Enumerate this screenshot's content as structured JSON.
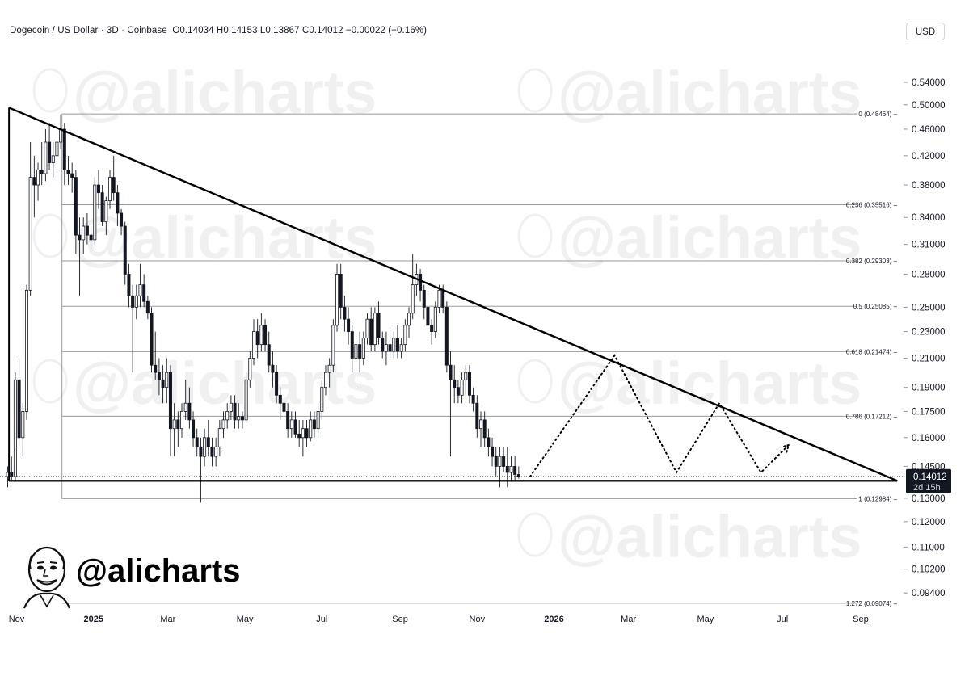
{
  "header": {
    "symbol": "Dogecoin / US Dollar · 3D · Coinbase",
    "ohlc": "O0.14034  H0.14153  L0.13867  C0.14012  −0.00022 (−0.16%)"
  },
  "currency_button": "USD",
  "watermark_text": "@alicharts",
  "brand_text": "@alicharts",
  "last_price": {
    "price": "0.14012",
    "countdown": "2d 15h"
  },
  "colors": {
    "up": "#ffffff",
    "down": "#131722",
    "wick": "#131722",
    "fib": "#9a9a9a",
    "trendline": "#000000"
  },
  "chart_data": {
    "type": "candlestick",
    "symbol": "DOGE/USD",
    "timeframe": "3D",
    "y_scale": "log",
    "ylim": [
      0.088,
      0.62
    ],
    "x_range": [
      "2024-10-24",
      "2026-10-05"
    ],
    "y_ticks": [
      "0.54000",
      "0.50000",
      "0.46000",
      "0.42000",
      "0.38000",
      "0.34000",
      "0.31000",
      "0.28000",
      "0.25000",
      "0.23000",
      "0.21000",
      "0.19000",
      "0.17500",
      "0.16000",
      "0.14500",
      "0.13000",
      "0.12000",
      "0.11000",
      "0.10200",
      "0.09400"
    ],
    "x_ticks": [
      {
        "label": "Nov",
        "date": "2024-11-01",
        "bold": false
      },
      {
        "label": "2025",
        "date": "2025-01-01",
        "bold": true
      },
      {
        "label": "Mar",
        "date": "2025-03-01",
        "bold": false
      },
      {
        "label": "May",
        "date": "2025-05-01",
        "bold": false
      },
      {
        "label": "Jul",
        "date": "2025-07-01",
        "bold": false
      },
      {
        "label": "Sep",
        "date": "2025-09-01",
        "bold": false
      },
      {
        "label": "Nov",
        "date": "2025-11-01",
        "bold": false
      },
      {
        "label": "2026",
        "date": "2026-01-01",
        "bold": true
      },
      {
        "label": "Mar",
        "date": "2026-03-01",
        "bold": false
      },
      {
        "label": "May",
        "date": "2026-05-01",
        "bold": false
      },
      {
        "label": "Jul",
        "date": "2026-07-01",
        "bold": false
      },
      {
        "label": "Sep",
        "date": "2026-09-01",
        "bold": false
      }
    ],
    "fib_levels": [
      {
        "label": "0 (0.48464)",
        "value": 0.48464
      },
      {
        "label": "0.236 (0.35516)",
        "value": 0.35516
      },
      {
        "label": "0.382 (0.29303)",
        "value": 0.29303
      },
      {
        "label": "0.5 (0.25085)",
        "value": 0.25085
      },
      {
        "label": "0.618 (0.21474)",
        "value": 0.21474
      },
      {
        "label": "0.786 (0.17212)",
        "value": 0.17212
      },
      {
        "label": "1 (0.12984)",
        "value": 0.12984
      },
      {
        "label": "1.272 (0.09074)",
        "value": 0.09074
      }
    ],
    "fib_start_date": "2024-12-07",
    "trendlines": [
      {
        "name": "resistance",
        "points": [
          [
            "2024-10-26",
            0.495
          ],
          [
            "2026-09-30",
            0.138
          ]
        ]
      },
      {
        "name": "support",
        "points": [
          [
            "2024-10-26",
            0.138
          ],
          [
            "2026-09-30",
            0.138
          ]
        ]
      }
    ],
    "projection": [
      [
        "2025-12-13",
        0.14
      ],
      [
        "2026-02-18",
        0.212
      ],
      [
        "2026-04-08",
        0.142
      ],
      [
        "2026-05-12",
        0.18
      ],
      [
        "2026-06-14",
        0.142
      ],
      [
        "2026-07-06",
        0.156
      ]
    ],
    "candles": [
      [
        "2024-10-25",
        0.14,
        0.145,
        0.135,
        0.142
      ],
      [
        "2024-10-28",
        0.142,
        0.15,
        0.138,
        0.14
      ],
      [
        "2024-10-31",
        0.14,
        0.2,
        0.138,
        0.195
      ],
      [
        "2024-11-03",
        0.195,
        0.21,
        0.155,
        0.16
      ],
      [
        "2024-11-06",
        0.16,
        0.18,
        0.15,
        0.175
      ],
      [
        "2024-11-09",
        0.175,
        0.27,
        0.17,
        0.265
      ],
      [
        "2024-11-12",
        0.265,
        0.44,
        0.26,
        0.39
      ],
      [
        "2024-11-15",
        0.39,
        0.42,
        0.34,
        0.38
      ],
      [
        "2024-11-18",
        0.38,
        0.41,
        0.36,
        0.4
      ],
      [
        "2024-11-21",
        0.4,
        0.44,
        0.38,
        0.395
      ],
      [
        "2024-11-24",
        0.395,
        0.46,
        0.385,
        0.44
      ],
      [
        "2024-11-27",
        0.44,
        0.47,
        0.4,
        0.41
      ],
      [
        "2024-11-30",
        0.41,
        0.44,
        0.39,
        0.42
      ],
      [
        "2024-12-03",
        0.42,
        0.46,
        0.4,
        0.44
      ],
      [
        "2024-12-06",
        0.44,
        0.484,
        0.43,
        0.46
      ],
      [
        "2024-12-09",
        0.46,
        0.47,
        0.38,
        0.4
      ],
      [
        "2024-12-12",
        0.4,
        0.42,
        0.38,
        0.395
      ],
      [
        "2024-12-15",
        0.395,
        0.41,
        0.37,
        0.39
      ],
      [
        "2024-12-18",
        0.39,
        0.4,
        0.3,
        0.32
      ],
      [
        "2024-12-21",
        0.32,
        0.34,
        0.26,
        0.315
      ],
      [
        "2024-12-24",
        0.315,
        0.34,
        0.3,
        0.33
      ],
      [
        "2024-12-27",
        0.33,
        0.345,
        0.31,
        0.32
      ],
      [
        "2024-12-30",
        0.32,
        0.33,
        0.305,
        0.315
      ],
      [
        "2025-01-02",
        0.315,
        0.39,
        0.31,
        0.38
      ],
      [
        "2025-01-05",
        0.38,
        0.4,
        0.35,
        0.37
      ],
      [
        "2025-01-08",
        0.37,
        0.38,
        0.33,
        0.335
      ],
      [
        "2025-01-11",
        0.335,
        0.365,
        0.32,
        0.36
      ],
      [
        "2025-01-14",
        0.36,
        0.4,
        0.35,
        0.39
      ],
      [
        "2025-01-17",
        0.39,
        0.42,
        0.36,
        0.37
      ],
      [
        "2025-01-20",
        0.37,
        0.38,
        0.33,
        0.345
      ],
      [
        "2025-01-23",
        0.345,
        0.35,
        0.32,
        0.33
      ],
      [
        "2025-01-26",
        0.33,
        0.335,
        0.27,
        0.28
      ],
      [
        "2025-01-29",
        0.28,
        0.29,
        0.25,
        0.26
      ],
      [
        "2025-02-01",
        0.26,
        0.27,
        0.2,
        0.25
      ],
      [
        "2025-02-04",
        0.25,
        0.27,
        0.24,
        0.26
      ],
      [
        "2025-02-07",
        0.26,
        0.29,
        0.25,
        0.27
      ],
      [
        "2025-02-10",
        0.27,
        0.28,
        0.25,
        0.255
      ],
      [
        "2025-02-13",
        0.255,
        0.26,
        0.24,
        0.245
      ],
      [
        "2025-02-16",
        0.245,
        0.25,
        0.2,
        0.205
      ],
      [
        "2025-02-19",
        0.205,
        0.23,
        0.195,
        0.2
      ],
      [
        "2025-02-22",
        0.2,
        0.21,
        0.185,
        0.195
      ],
      [
        "2025-02-25",
        0.195,
        0.205,
        0.18,
        0.19
      ],
      [
        "2025-02-28",
        0.19,
        0.21,
        0.18,
        0.2
      ],
      [
        "2025-03-03",
        0.2,
        0.205,
        0.15,
        0.165
      ],
      [
        "2025-03-06",
        0.165,
        0.18,
        0.15,
        0.17
      ],
      [
        "2025-03-09",
        0.17,
        0.175,
        0.155,
        0.165
      ],
      [
        "2025-03-12",
        0.165,
        0.18,
        0.16,
        0.175
      ],
      [
        "2025-03-15",
        0.175,
        0.195,
        0.17,
        0.18
      ],
      [
        "2025-03-18",
        0.18,
        0.19,
        0.165,
        0.17
      ],
      [
        "2025-03-21",
        0.17,
        0.175,
        0.155,
        0.16
      ],
      [
        "2025-03-24",
        0.16,
        0.165,
        0.15,
        0.155
      ],
      [
        "2025-03-27",
        0.155,
        0.16,
        0.128,
        0.15
      ],
      [
        "2025-03-30",
        0.15,
        0.165,
        0.145,
        0.16
      ],
      [
        "2025-04-02",
        0.16,
        0.17,
        0.15,
        0.155
      ],
      [
        "2025-04-05",
        0.155,
        0.16,
        0.145,
        0.15
      ],
      [
        "2025-04-08",
        0.15,
        0.16,
        0.145,
        0.155
      ],
      [
        "2025-04-11",
        0.155,
        0.17,
        0.15,
        0.165
      ],
      [
        "2025-04-14",
        0.165,
        0.175,
        0.16,
        0.17
      ],
      [
        "2025-04-17",
        0.17,
        0.18,
        0.165,
        0.175
      ],
      [
        "2025-04-20",
        0.175,
        0.185,
        0.17,
        0.18
      ],
      [
        "2025-04-23",
        0.18,
        0.185,
        0.165,
        0.17
      ],
      [
        "2025-04-26",
        0.17,
        0.18,
        0.165,
        0.172
      ],
      [
        "2025-04-29",
        0.172,
        0.175,
        0.165,
        0.17
      ],
      [
        "2025-05-02",
        0.17,
        0.2,
        0.168,
        0.195
      ],
      [
        "2025-05-05",
        0.195,
        0.215,
        0.19,
        0.21
      ],
      [
        "2025-05-08",
        0.21,
        0.24,
        0.205,
        0.23
      ],
      [
        "2025-05-11",
        0.23,
        0.24,
        0.21,
        0.22
      ],
      [
        "2025-05-14",
        0.22,
        0.245,
        0.215,
        0.235
      ],
      [
        "2025-05-17",
        0.235,
        0.24,
        0.215,
        0.22
      ],
      [
        "2025-05-20",
        0.22,
        0.23,
        0.2,
        0.205
      ],
      [
        "2025-05-23",
        0.205,
        0.215,
        0.19,
        0.2
      ],
      [
        "2025-05-26",
        0.2,
        0.205,
        0.18,
        0.185
      ],
      [
        "2025-05-29",
        0.185,
        0.19,
        0.17,
        0.18
      ],
      [
        "2025-06-01",
        0.18,
        0.185,
        0.17,
        0.175
      ],
      [
        "2025-06-04",
        0.175,
        0.18,
        0.16,
        0.165
      ],
      [
        "2025-06-07",
        0.165,
        0.175,
        0.16,
        0.17
      ],
      [
        "2025-06-10",
        0.17,
        0.175,
        0.16,
        0.162
      ],
      [
        "2025-06-13",
        0.162,
        0.17,
        0.155,
        0.16
      ],
      [
        "2025-06-16",
        0.16,
        0.17,
        0.15,
        0.165
      ],
      [
        "2025-06-19",
        0.165,
        0.17,
        0.155,
        0.16
      ],
      [
        "2025-06-22",
        0.16,
        0.175,
        0.158,
        0.17
      ],
      [
        "2025-06-25",
        0.17,
        0.175,
        0.16,
        0.165
      ],
      [
        "2025-06-28",
        0.165,
        0.18,
        0.16,
        0.175
      ],
      [
        "2025-07-01",
        0.175,
        0.195,
        0.17,
        0.19
      ],
      [
        "2025-07-04",
        0.19,
        0.205,
        0.185,
        0.2
      ],
      [
        "2025-07-07",
        0.2,
        0.21,
        0.19,
        0.205
      ],
      [
        "2025-07-10",
        0.205,
        0.24,
        0.2,
        0.235
      ],
      [
        "2025-07-13",
        0.235,
        0.29,
        0.23,
        0.28
      ],
      [
        "2025-07-16",
        0.28,
        0.29,
        0.24,
        0.25
      ],
      [
        "2025-07-19",
        0.25,
        0.26,
        0.23,
        0.24
      ],
      [
        "2025-07-22",
        0.24,
        0.25,
        0.22,
        0.23
      ],
      [
        "2025-07-25",
        0.23,
        0.235,
        0.2,
        0.21
      ],
      [
        "2025-07-28",
        0.21,
        0.225,
        0.19,
        0.22
      ],
      [
        "2025-07-31",
        0.22,
        0.23,
        0.2,
        0.21
      ],
      [
        "2025-08-03",
        0.21,
        0.23,
        0.205,
        0.225
      ],
      [
        "2025-08-06",
        0.225,
        0.245,
        0.22,
        0.24
      ],
      [
        "2025-08-09",
        0.24,
        0.25,
        0.215,
        0.22
      ],
      [
        "2025-08-12",
        0.22,
        0.25,
        0.215,
        0.245
      ],
      [
        "2025-08-15",
        0.245,
        0.255,
        0.22,
        0.225
      ],
      [
        "2025-08-18",
        0.225,
        0.23,
        0.21,
        0.215
      ],
      [
        "2025-08-21",
        0.215,
        0.23,
        0.205,
        0.22
      ],
      [
        "2025-08-24",
        0.22,
        0.235,
        0.21,
        0.215
      ],
      [
        "2025-08-27",
        0.215,
        0.23,
        0.21,
        0.225
      ],
      [
        "2025-08-30",
        0.225,
        0.235,
        0.21,
        0.215
      ],
      [
        "2025-09-02",
        0.215,
        0.225,
        0.21,
        0.22
      ],
      [
        "2025-09-05",
        0.22,
        0.24,
        0.215,
        0.235
      ],
      [
        "2025-09-08",
        0.235,
        0.25,
        0.225,
        0.245
      ],
      [
        "2025-09-11",
        0.245,
        0.3,
        0.24,
        0.27
      ],
      [
        "2025-09-14",
        0.27,
        0.29,
        0.26,
        0.28
      ],
      [
        "2025-09-17",
        0.28,
        0.285,
        0.255,
        0.265
      ],
      [
        "2025-09-20",
        0.265,
        0.27,
        0.24,
        0.25
      ],
      [
        "2025-09-23",
        0.25,
        0.26,
        0.225,
        0.235
      ],
      [
        "2025-09-26",
        0.235,
        0.24,
        0.22,
        0.23
      ],
      [
        "2025-09-29",
        0.23,
        0.255,
        0.225,
        0.25
      ],
      [
        "2025-10-02",
        0.25,
        0.27,
        0.245,
        0.265
      ],
      [
        "2025-10-05",
        0.265,
        0.27,
        0.245,
        0.25
      ],
      [
        "2025-10-08",
        0.25,
        0.255,
        0.2,
        0.205
      ],
      [
        "2025-10-11",
        0.205,
        0.215,
        0.15,
        0.195
      ],
      [
        "2025-10-14",
        0.195,
        0.205,
        0.18,
        0.19
      ],
      [
        "2025-10-17",
        0.19,
        0.195,
        0.18,
        0.185
      ],
      [
        "2025-10-20",
        0.185,
        0.2,
        0.18,
        0.195
      ],
      [
        "2025-10-23",
        0.195,
        0.205,
        0.185,
        0.2
      ],
      [
        "2025-10-26",
        0.2,
        0.205,
        0.18,
        0.185
      ],
      [
        "2025-10-29",
        0.185,
        0.19,
        0.175,
        0.18
      ],
      [
        "2025-11-01",
        0.18,
        0.185,
        0.16,
        0.165
      ],
      [
        "2025-11-04",
        0.165,
        0.175,
        0.155,
        0.17
      ],
      [
        "2025-11-07",
        0.17,
        0.175,
        0.155,
        0.16
      ],
      [
        "2025-11-10",
        0.16,
        0.165,
        0.15,
        0.155
      ],
      [
        "2025-11-13",
        0.155,
        0.16,
        0.145,
        0.15
      ],
      [
        "2025-11-16",
        0.15,
        0.155,
        0.14,
        0.145
      ],
      [
        "2025-11-19",
        0.145,
        0.155,
        0.135,
        0.15
      ],
      [
        "2025-11-22",
        0.15,
        0.155,
        0.142,
        0.145
      ],
      [
        "2025-11-25",
        0.145,
        0.155,
        0.135,
        0.142
      ],
      [
        "2025-11-28",
        0.142,
        0.15,
        0.138,
        0.145
      ],
      [
        "2025-12-01",
        0.145,
        0.15,
        0.138,
        0.141
      ],
      [
        "2025-12-04",
        0.141,
        0.145,
        0.139,
        0.14
      ]
    ]
  }
}
